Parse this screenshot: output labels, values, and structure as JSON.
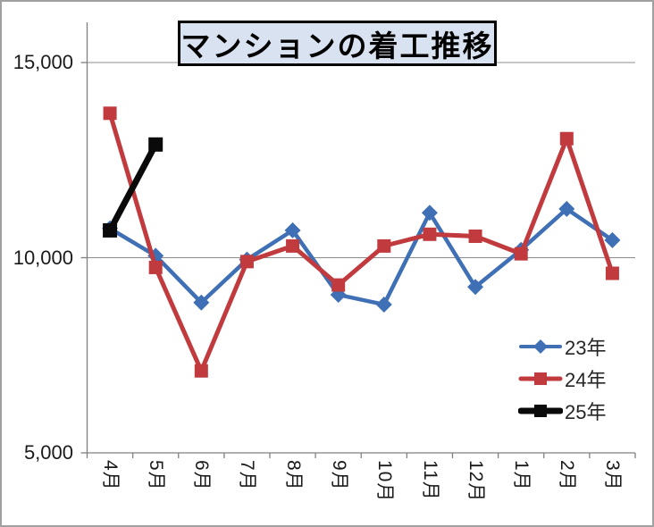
{
  "title": "マンションの着工推移",
  "colors": {
    "series_23": "#3f6fb5",
    "series_24": "#c03a3e",
    "series_25": "#0a0a0a",
    "title_box_fill": "#d9e2f1",
    "title_box_border": "#000000",
    "axis": "#808080",
    "gridline": "#8c8c8c",
    "outer_border": "#a0a0a0",
    "text": "#1a1a1a"
  },
  "y_axis": {
    "tick_labels": [
      "15,000",
      "10,000",
      "5,000"
    ],
    "tick_values": [
      15000,
      10000,
      5000
    ],
    "min": 5000,
    "max": 15000
  },
  "x_axis": {
    "labels": [
      "4月",
      "5月",
      "6月",
      "7月",
      "8月",
      "9月",
      "10月",
      "11月",
      "12月",
      "1月",
      "2月",
      "3月"
    ]
  },
  "legend": {
    "items": [
      {
        "label": "23年",
        "marker": "diamond",
        "color": "#3f6fb5",
        "line_width": 4
      },
      {
        "label": "24年",
        "marker": "square",
        "color": "#c03a3e",
        "line_width": 5
      },
      {
        "label": "25年",
        "marker": "square",
        "color": "#0a0a0a",
        "line_width": 7
      }
    ]
  },
  "chart_data": {
    "type": "line",
    "title": "マンションの着工推移",
    "categories": [
      "4月",
      "5月",
      "6月",
      "7月",
      "8月",
      "9月",
      "10月",
      "11月",
      "12月",
      "1月",
      "2月",
      "3月"
    ],
    "series": [
      {
        "name": "23年",
        "color": "#3f6fb5",
        "marker": "diamond",
        "line_width": 4.5,
        "values": [
          10750,
          10050,
          8850,
          9950,
          10700,
          9050,
          8800,
          11150,
          9250,
          10200,
          11250,
          10450
        ]
      },
      {
        "name": "24年",
        "color": "#c03a3e",
        "marker": "square",
        "line_width": 5,
        "values": [
          13700,
          9750,
          7100,
          9900,
          10300,
          9300,
          10300,
          10600,
          10550,
          10100,
          13050,
          9600
        ]
      },
      {
        "name": "25年",
        "color": "#0a0a0a",
        "marker": "square",
        "line_width": 7,
        "values": [
          10700,
          12900,
          null,
          null,
          null,
          null,
          null,
          null,
          null,
          null,
          null,
          null
        ]
      }
    ],
    "ylim": [
      5000,
      15000
    ],
    "grid": true,
    "legend_position": "inside-right-bottom"
  }
}
